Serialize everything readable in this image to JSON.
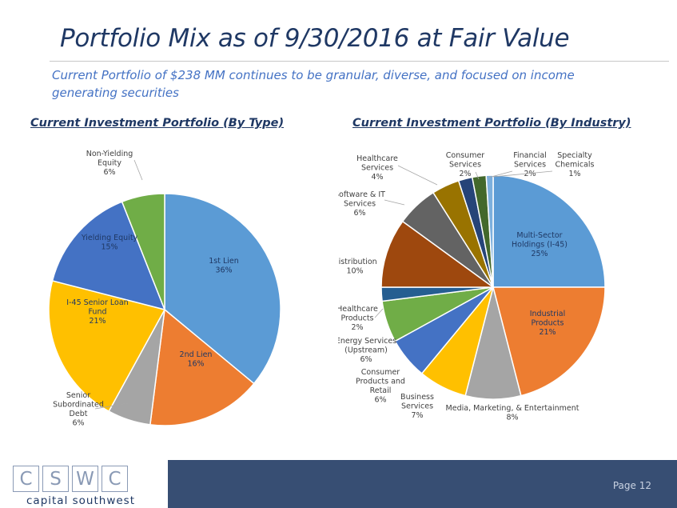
{
  "page": {
    "title": "Portfolio Mix as of 9/30/2016 at Fair Value",
    "subtitle": "Current Portfolio of $238 MM continues to be granular, diverse, and focused on income generating securities",
    "page_number": "Page 12"
  },
  "logo": {
    "letters": [
      "C",
      "S",
      "W",
      "C"
    ],
    "tagline": "capital southwest"
  },
  "chart_data": [
    {
      "type": "pie",
      "title": "Current Investment Portfolio (By Type)",
      "slices": [
        {
          "label": "1st Lien",
          "value": 36,
          "display": "36%",
          "color": "#5B9BD5",
          "label_inside": true
        },
        {
          "label": "2nd Lien",
          "value": 16,
          "display": "16%",
          "color": "#ED7D31",
          "label_inside": true
        },
        {
          "label": "Senior Subordinated Debt",
          "value": 6,
          "display": "6%",
          "color": "#A5A5A5",
          "label_inside": false
        },
        {
          "label": "I-45 Senior Loan Fund",
          "value": 21,
          "display": "21%",
          "color": "#FFC000",
          "label_inside": true
        },
        {
          "label": "Yielding Equity",
          "value": 15,
          "display": "15%",
          "color": "#4472C4",
          "label_inside": true
        },
        {
          "label": "Non-Yielding Equity",
          "value": 6,
          "display": "6%",
          "color": "#70AD47",
          "label_inside": false
        }
      ]
    },
    {
      "type": "pie",
      "title": "Current Investment Portfolio (By Industry)",
      "slices": [
        {
          "label": "Multi-Sector Holdings (I-45)",
          "value": 25,
          "display": "25%",
          "color": "#5B9BD5",
          "label_inside": true
        },
        {
          "label": "Industrial Products",
          "value": 21,
          "display": "21%",
          "color": "#ED7D31",
          "label_inside": true
        },
        {
          "label": "Media, Marketing, & Entertainment",
          "value": 8,
          "display": "8%",
          "color": "#A5A5A5",
          "label_inside": false
        },
        {
          "label": "Business Services",
          "value": 7,
          "display": "7%",
          "color": "#FFC000",
          "label_inside": false
        },
        {
          "label": "Consumer Products and Retail",
          "value": 6,
          "display": "6%",
          "color": "#4472C4",
          "label_inside": false
        },
        {
          "label": "Energy Services (Upstream)",
          "value": 6,
          "display": "6%",
          "color": "#70AD47",
          "label_inside": false
        },
        {
          "label": "Healthcare Products",
          "value": 2,
          "display": "2%",
          "color": "#255E91",
          "label_inside": false
        },
        {
          "label": "Distribution",
          "value": 10,
          "display": "10%",
          "color": "#9E480E",
          "label_inside": false
        },
        {
          "label": "Software & IT Services",
          "value": 6,
          "display": "6%",
          "color": "#636363",
          "label_inside": false
        },
        {
          "label": "Healthcare Services",
          "value": 4,
          "display": "4%",
          "color": "#997300",
          "label_inside": false
        },
        {
          "label": "Consumer Services",
          "value": 2,
          "display": "2%",
          "color": "#264478",
          "label_inside": false
        },
        {
          "label": "Financial Services",
          "value": 2,
          "display": "2%",
          "color": "#43682B",
          "label_inside": false
        },
        {
          "label": "Specialty Chemicals",
          "value": 1,
          "display": "1%",
          "color": "#7CAFDD",
          "label_inside": false
        }
      ]
    }
  ]
}
